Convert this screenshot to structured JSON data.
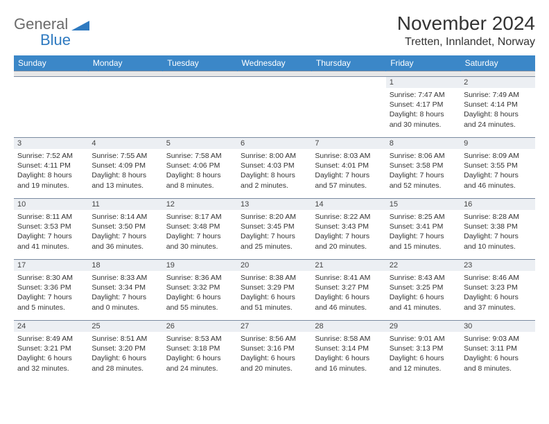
{
  "logo": {
    "word1": "General",
    "word2": "Blue"
  },
  "title": "November 2024",
  "location": "Tretten, Innlandet, Norway",
  "colors": {
    "header_bg": "#3b87c8",
    "header_text": "#ffffff",
    "daynum_bg": "#eceff3",
    "border": "#7a8aa0",
    "logo_gray": "#6b6b6b",
    "logo_blue": "#2f7ac0"
  },
  "weekdays": [
    "Sunday",
    "Monday",
    "Tuesday",
    "Wednesday",
    "Thursday",
    "Friday",
    "Saturday"
  ],
  "first_weekday_index": 5,
  "days": [
    {
      "n": 1,
      "sunrise": "7:47 AM",
      "sunset": "4:17 PM",
      "daylight": "8 hours and 30 minutes."
    },
    {
      "n": 2,
      "sunrise": "7:49 AM",
      "sunset": "4:14 PM",
      "daylight": "8 hours and 24 minutes."
    },
    {
      "n": 3,
      "sunrise": "7:52 AM",
      "sunset": "4:11 PM",
      "daylight": "8 hours and 19 minutes."
    },
    {
      "n": 4,
      "sunrise": "7:55 AM",
      "sunset": "4:09 PM",
      "daylight": "8 hours and 13 minutes."
    },
    {
      "n": 5,
      "sunrise": "7:58 AM",
      "sunset": "4:06 PM",
      "daylight": "8 hours and 8 minutes."
    },
    {
      "n": 6,
      "sunrise": "8:00 AM",
      "sunset": "4:03 PM",
      "daylight": "8 hours and 2 minutes."
    },
    {
      "n": 7,
      "sunrise": "8:03 AM",
      "sunset": "4:01 PM",
      "daylight": "7 hours and 57 minutes."
    },
    {
      "n": 8,
      "sunrise": "8:06 AM",
      "sunset": "3:58 PM",
      "daylight": "7 hours and 52 minutes."
    },
    {
      "n": 9,
      "sunrise": "8:09 AM",
      "sunset": "3:55 PM",
      "daylight": "7 hours and 46 minutes."
    },
    {
      "n": 10,
      "sunrise": "8:11 AM",
      "sunset": "3:53 PM",
      "daylight": "7 hours and 41 minutes."
    },
    {
      "n": 11,
      "sunrise": "8:14 AM",
      "sunset": "3:50 PM",
      "daylight": "7 hours and 36 minutes."
    },
    {
      "n": 12,
      "sunrise": "8:17 AM",
      "sunset": "3:48 PM",
      "daylight": "7 hours and 30 minutes."
    },
    {
      "n": 13,
      "sunrise": "8:20 AM",
      "sunset": "3:45 PM",
      "daylight": "7 hours and 25 minutes."
    },
    {
      "n": 14,
      "sunrise": "8:22 AM",
      "sunset": "3:43 PM",
      "daylight": "7 hours and 20 minutes."
    },
    {
      "n": 15,
      "sunrise": "8:25 AM",
      "sunset": "3:41 PM",
      "daylight": "7 hours and 15 minutes."
    },
    {
      "n": 16,
      "sunrise": "8:28 AM",
      "sunset": "3:38 PM",
      "daylight": "7 hours and 10 minutes."
    },
    {
      "n": 17,
      "sunrise": "8:30 AM",
      "sunset": "3:36 PM",
      "daylight": "7 hours and 5 minutes."
    },
    {
      "n": 18,
      "sunrise": "8:33 AM",
      "sunset": "3:34 PM",
      "daylight": "7 hours and 0 minutes."
    },
    {
      "n": 19,
      "sunrise": "8:36 AM",
      "sunset": "3:32 PM",
      "daylight": "6 hours and 55 minutes."
    },
    {
      "n": 20,
      "sunrise": "8:38 AM",
      "sunset": "3:29 PM",
      "daylight": "6 hours and 51 minutes."
    },
    {
      "n": 21,
      "sunrise": "8:41 AM",
      "sunset": "3:27 PM",
      "daylight": "6 hours and 46 minutes."
    },
    {
      "n": 22,
      "sunrise": "8:43 AM",
      "sunset": "3:25 PM",
      "daylight": "6 hours and 41 minutes."
    },
    {
      "n": 23,
      "sunrise": "8:46 AM",
      "sunset": "3:23 PM",
      "daylight": "6 hours and 37 minutes."
    },
    {
      "n": 24,
      "sunrise": "8:49 AM",
      "sunset": "3:21 PM",
      "daylight": "6 hours and 32 minutes."
    },
    {
      "n": 25,
      "sunrise": "8:51 AM",
      "sunset": "3:20 PM",
      "daylight": "6 hours and 28 minutes."
    },
    {
      "n": 26,
      "sunrise": "8:53 AM",
      "sunset": "3:18 PM",
      "daylight": "6 hours and 24 minutes."
    },
    {
      "n": 27,
      "sunrise": "8:56 AM",
      "sunset": "3:16 PM",
      "daylight": "6 hours and 20 minutes."
    },
    {
      "n": 28,
      "sunrise": "8:58 AM",
      "sunset": "3:14 PM",
      "daylight": "6 hours and 16 minutes."
    },
    {
      "n": 29,
      "sunrise": "9:01 AM",
      "sunset": "3:13 PM",
      "daylight": "6 hours and 12 minutes."
    },
    {
      "n": 30,
      "sunrise": "9:03 AM",
      "sunset": "3:11 PM",
      "daylight": "6 hours and 8 minutes."
    }
  ],
  "labels": {
    "sunrise_prefix": "Sunrise: ",
    "sunset_prefix": "Sunset: ",
    "daylight_prefix": "Daylight: "
  }
}
